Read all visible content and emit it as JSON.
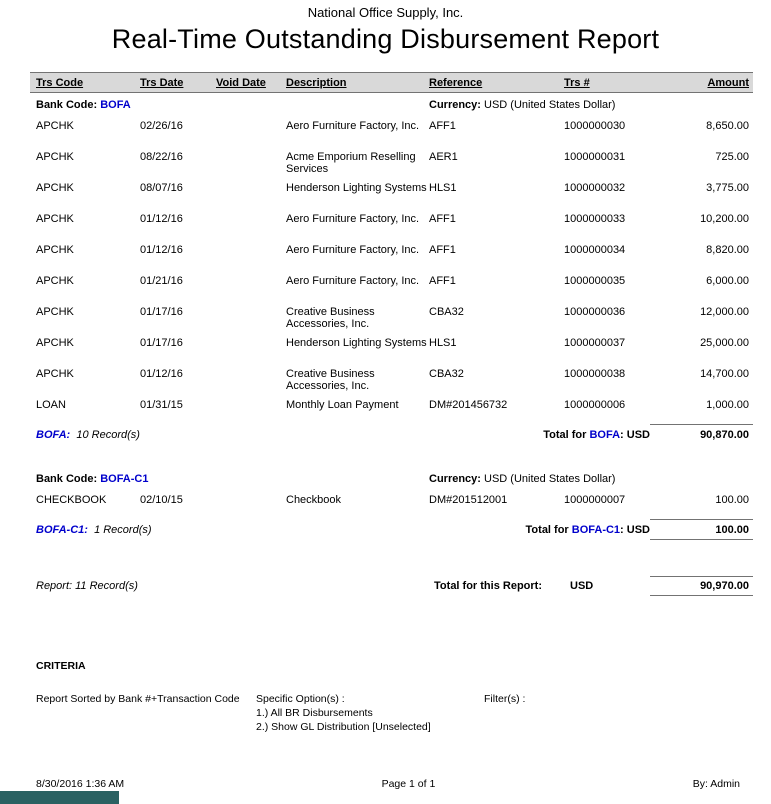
{
  "colors": {
    "bank_code": "#0000cc",
    "rule": "#737373",
    "header_band": "#d9d9d9",
    "bottom_bar": "#2a6162"
  },
  "page": {
    "company": "National Office Supply, Inc.",
    "title": "Real-Time Outstanding Disbursement Report",
    "columns": [
      "Trs Code",
      "Trs Date",
      "Void Date",
      "Description",
      "Reference",
      "Trs #",
      "Amount"
    ],
    "labels": {
      "bank_code": "Bank Code:",
      "currency": "Currency:",
      "total_for": "Total for",
      "report_total": "Total for this Report:",
      "criteria": "CRITERIA",
      "sorted_by": "Report Sorted by Bank #+Transaction Code",
      "specific_options": "Specific Option(s) :",
      "filters": "Filter(s) :"
    },
    "groups": [
      {
        "bank_code": "BOFA",
        "currency": "USD (United States Dollar)",
        "rows": [
          {
            "code": "APCHK",
            "date": "02/26/16",
            "void_date": "",
            "description": "Aero Furniture Factory, Inc.",
            "reference": "AFF1",
            "trs_no": "1000000030",
            "amount": "8,650.00"
          },
          {
            "code": "APCHK",
            "date": "08/22/16",
            "void_date": "",
            "description": "Acme Emporium Reselling Services",
            "reference": "AER1",
            "trs_no": "1000000031",
            "amount": "725.00"
          },
          {
            "code": "APCHK",
            "date": "08/07/16",
            "void_date": "",
            "description": "Henderson Lighting Systems",
            "reference": "HLS1",
            "trs_no": "1000000032",
            "amount": "3,775.00"
          },
          {
            "code": "APCHK",
            "date": "01/12/16",
            "void_date": "",
            "description": "Aero Furniture Factory, Inc.",
            "reference": "AFF1",
            "trs_no": "1000000033",
            "amount": "10,200.00"
          },
          {
            "code": "APCHK",
            "date": "01/12/16",
            "void_date": "",
            "description": "Aero Furniture Factory, Inc.",
            "reference": "AFF1",
            "trs_no": "1000000034",
            "amount": "8,820.00"
          },
          {
            "code": "APCHK",
            "date": "01/21/16",
            "void_date": "",
            "description": "Aero Furniture Factory, Inc.",
            "reference": "AFF1",
            "trs_no": "1000000035",
            "amount": "6,000.00"
          },
          {
            "code": "APCHK",
            "date": "01/17/16",
            "void_date": "",
            "description": "Creative Business Accessories, Inc.",
            "reference": "CBA32",
            "trs_no": "1000000036",
            "amount": "12,000.00"
          },
          {
            "code": "APCHK",
            "date": "01/17/16",
            "void_date": "",
            "description": "Henderson Lighting Systems",
            "reference": "HLS1",
            "trs_no": "1000000037",
            "amount": "25,000.00"
          },
          {
            "code": "APCHK",
            "date": "01/12/16",
            "void_date": "",
            "description": "Creative Business Accessories, Inc.",
            "reference": "CBA32",
            "trs_no": "1000000038",
            "amount": "14,700.00"
          },
          {
            "code": "LOAN",
            "date": "01/31/15",
            "void_date": "",
            "description": "Monthly Loan Payment",
            "reference": "DM#201456732",
            "trs_no": "1000000006",
            "amount": "1,000.00"
          }
        ],
        "records": "10 Record(s)",
        "total_currency": "USD",
        "total": "90,870.00"
      },
      {
        "bank_code": "BOFA-C1",
        "currency": "USD (United States Dollar)",
        "rows": [
          {
            "code": "CHECKBOOK",
            "date": "02/10/15",
            "void_date": "",
            "description": "Checkbook",
            "reference": "DM#201512001",
            "trs_no": "1000000007",
            "amount": "100.00"
          }
        ],
        "records": "1 Record(s)",
        "total_currency": "USD",
        "total": "100.00"
      }
    ],
    "report_summary": {
      "records": "Report: 11 Record(s)",
      "currency": "USD",
      "total": "90,970.00"
    },
    "criteria_options": [
      "1.) All BR Disbursements",
      "2.) Show GL Distribution [Unselected]"
    ],
    "footer": {
      "datetime": "8/30/2016 1:36 AM",
      "page": "Page 1 of 1",
      "by": "By: Admin"
    }
  }
}
